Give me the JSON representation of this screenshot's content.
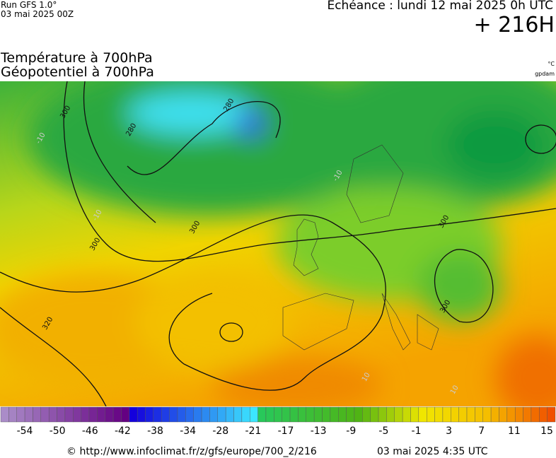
{
  "header": {
    "run": "Run GFS 1.0°",
    "run_date": "03 mai 2025 00Z",
    "echeance": "Echéance : lundi 12 mai 2025 0h UTC",
    "lead": "+ 216H"
  },
  "titles": {
    "line1": "Température à 700hPa",
    "line2": "Géopotentiel à 700hPa",
    "unit_temp": "°C",
    "unit_geo": "gpdam"
  },
  "contour_labels": [
    "300",
    "280",
    "280",
    "300",
    "300",
    "320",
    "300",
    "300",
    "-10",
    "-10",
    "-10",
    "10",
    "10"
  ],
  "colorbar": {
    "ticks": [
      -54,
      -50,
      -46,
      -42,
      -38,
      -34,
      -28,
      -21,
      -17,
      -13,
      -9,
      -5,
      -1,
      3,
      7,
      11,
      15
    ]
  },
  "footer": {
    "source": "© http://www.infoclimat.fr/z/gfs/europe/700_2/216",
    "generated": "03 mai 2025  4:35 UTC"
  }
}
